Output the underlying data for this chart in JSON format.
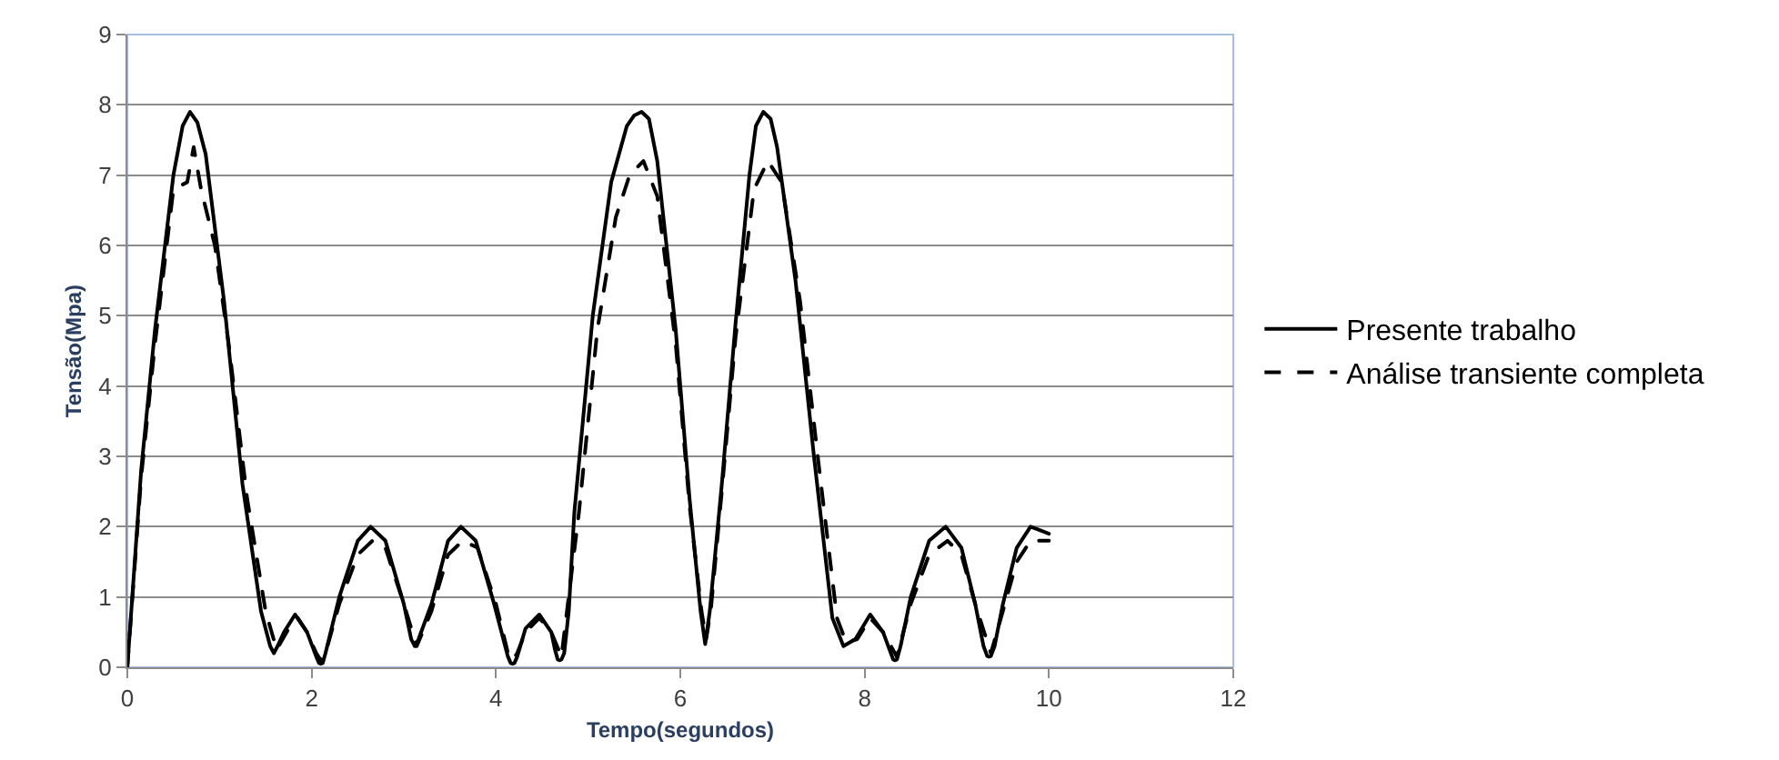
{
  "chart_data": {
    "type": "line",
    "xlabel": "Tempo(segundos)",
    "ylabel": "Tensão(Mpa)",
    "xlim": [
      0,
      12
    ],
    "xticks": [
      0,
      2,
      4,
      6,
      8,
      10,
      12
    ],
    "ylim": [
      0,
      9
    ],
    "yticks": [
      0,
      1,
      2,
      3,
      4,
      5,
      6,
      7,
      8,
      9
    ],
    "grid": "y",
    "legend": "right",
    "marker": "none",
    "series": [
      {
        "name": "Presente trabalho",
        "color": "#000000",
        "line_style": "solid",
        "x": [
          0,
          0.15,
          0.3,
          0.5,
          0.6,
          0.68,
          0.76,
          0.85,
          1.05,
          1.25,
          1.45,
          1.55,
          1.59,
          1.63,
          1.7,
          1.82,
          1.95,
          2.05,
          2.08,
          2.1,
          2.12,
          2.15,
          2.3,
          2.5,
          2.64,
          2.8,
          3.0,
          3.08,
          3.12,
          3.16,
          3.3,
          3.48,
          3.62,
          3.78,
          3.98,
          4.13,
          4.16,
          4.18,
          4.2,
          4.23,
          4.32,
          4.47,
          4.6,
          4.64,
          4.67,
          4.69,
          4.71,
          4.74,
          4.79,
          4.85,
          5.05,
          5.25,
          5.42,
          5.5,
          5.58,
          5.66,
          5.75,
          5.95,
          6.1,
          6.22,
          6.27,
          6.32,
          6.45,
          6.6,
          6.75,
          6.82,
          6.9,
          6.98,
          7.05,
          7.25,
          7.45,
          7.65,
          7.77,
          7.9,
          8.06,
          8.2,
          8.27,
          8.31,
          8.33,
          8.35,
          8.39,
          8.5,
          8.7,
          8.88,
          9.05,
          9.2,
          9.29,
          9.33,
          9.35,
          9.37,
          9.41,
          9.5,
          9.65,
          9.8,
          9.9,
          10
        ],
        "values": [
          0,
          2.8,
          4.8,
          7.0,
          7.7,
          7.9,
          7.75,
          7.3,
          5.2,
          2.6,
          0.8,
          0.3,
          0.2,
          0.3,
          0.5,
          0.75,
          0.5,
          0.15,
          0.06,
          0.05,
          0.06,
          0.2,
          1.0,
          1.8,
          2.0,
          1.8,
          0.9,
          0.4,
          0.3,
          0.4,
          0.9,
          1.8,
          2.0,
          1.8,
          0.9,
          0.15,
          0.06,
          0.05,
          0.06,
          0.15,
          0.55,
          0.75,
          0.5,
          0.25,
          0.11,
          0.1,
          0.11,
          0.2,
          0.8,
          2.2,
          5.0,
          6.9,
          7.7,
          7.85,
          7.9,
          7.8,
          7.2,
          4.8,
          2.4,
          0.8,
          0.33,
          0.8,
          2.6,
          4.9,
          7.0,
          7.7,
          7.9,
          7.8,
          7.4,
          5.5,
          3.0,
          0.7,
          0.3,
          0.4,
          0.75,
          0.5,
          0.25,
          0.11,
          0.1,
          0.11,
          0.3,
          1.0,
          1.8,
          2.0,
          1.7,
          0.9,
          0.3,
          0.16,
          0.15,
          0.16,
          0.3,
          0.9,
          1.7,
          2.0,
          1.95,
          1.9
        ]
      },
      {
        "name": "Análise transiente completa",
        "color": "#000000",
        "line_style": "dashed",
        "x": [
          0,
          0.15,
          0.3,
          0.5,
          0.65,
          0.72,
          0.8,
          0.95,
          1.1,
          1.3,
          1.5,
          1.62,
          1.75,
          1.85,
          1.95,
          2.05,
          2.1,
          2.15,
          2.3,
          2.5,
          2.66,
          2.8,
          3.0,
          3.14,
          3.3,
          3.48,
          3.64,
          3.8,
          4.0,
          4.13,
          4.18,
          4.23,
          4.32,
          4.47,
          4.6,
          4.71,
          4.9,
          5.1,
          5.3,
          5.45,
          5.6,
          5.75,
          5.95,
          6.1,
          6.23,
          6.28,
          6.33,
          6.45,
          6.6,
          6.8,
          6.95,
          7.1,
          7.3,
          7.5,
          7.7,
          7.8,
          7.92,
          8.06,
          8.2,
          8.35,
          8.5,
          8.7,
          8.9,
          9.05,
          9.2,
          9.37,
          9.5,
          9.65,
          9.8,
          9.9,
          10
        ],
        "values": [
          0,
          2.7,
          4.6,
          6.8,
          6.9,
          7.4,
          6.8,
          6.0,
          4.6,
          2.4,
          0.8,
          0.25,
          0.55,
          0.7,
          0.5,
          0.2,
          0.1,
          0.2,
          0.9,
          1.6,
          1.8,
          1.7,
          0.9,
          0.3,
          0.8,
          1.6,
          1.8,
          1.7,
          0.9,
          0.2,
          0.1,
          0.2,
          0.5,
          0.7,
          0.5,
          0.15,
          2.2,
          4.8,
          6.4,
          7.0,
          7.2,
          6.7,
          4.6,
          2.3,
          0.8,
          0.4,
          0.8,
          2.5,
          4.7,
          6.8,
          7.2,
          6.9,
          5.2,
          2.9,
          0.7,
          0.35,
          0.4,
          0.7,
          0.5,
          0.15,
          0.9,
          1.6,
          1.8,
          1.6,
          0.9,
          0.2,
          0.8,
          1.5,
          1.8,
          1.8,
          1.8
        ]
      }
    ]
  }
}
